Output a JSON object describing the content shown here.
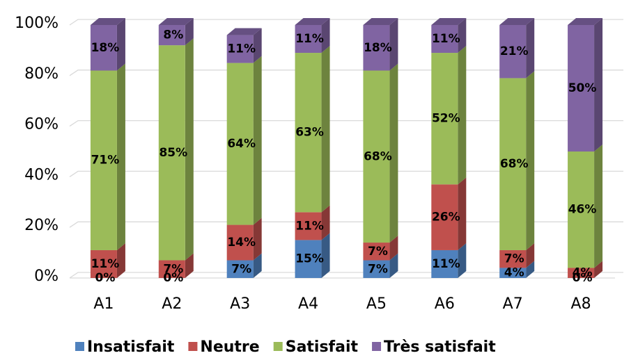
{
  "chart_data": {
    "type": "bar",
    "stacked": true,
    "categories": [
      "A1",
      "A2",
      "A3",
      "A4",
      "A5",
      "A6",
      "A7",
      "A8"
    ],
    "series": [
      {
        "name": "Insatisfait",
        "color": "#4f81bd",
        "values": [
          0,
          0,
          7,
          15,
          7,
          11,
          4,
          0
        ],
        "value_labels": [
          "0%",
          "0%",
          "7%",
          "15%",
          "7%",
          "11%",
          "4%",
          "0%"
        ]
      },
      {
        "name": "Neutre",
        "color": "#c0504d",
        "values": [
          11,
          7,
          14,
          11,
          7,
          26,
          7,
          4
        ],
        "value_labels": [
          "11%",
          "7%",
          "14%",
          "11%",
          "7%",
          "26%",
          "7%",
          "4%"
        ]
      },
      {
        "name": "Satisfait",
        "color": "#9bbb59",
        "values": [
          71,
          85,
          64,
          63,
          68,
          52,
          68,
          46
        ],
        "value_labels": [
          "71%",
          "85%",
          "64%",
          "63%",
          "68%",
          "52%",
          "68%",
          "46%"
        ]
      },
      {
        "name": "Très satisfait",
        "color": "#8064a2",
        "values": [
          18,
          8,
          11,
          11,
          18,
          11,
          21,
          50
        ],
        "value_labels": [
          "18%",
          "8%",
          "11%",
          "11%",
          "18%",
          "11%",
          "21%",
          "50%"
        ]
      }
    ],
    "ylim": [
      0,
      100
    ],
    "yticks": [
      {
        "value": 0,
        "label": "0%"
      },
      {
        "value": 20,
        "label": "20%"
      },
      {
        "value": 40,
        "label": "40%"
      },
      {
        "value": 60,
        "label": "60%"
      },
      {
        "value": 80,
        "label": "80%"
      },
      {
        "value": 100,
        "label": "100%"
      }
    ],
    "grid": true,
    "legend": "bottom"
  }
}
